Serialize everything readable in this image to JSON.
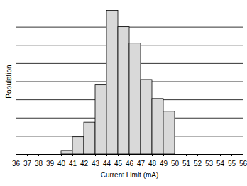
{
  "chart_data": {
    "type": "histogram",
    "bins": [
      40,
      41,
      42,
      43,
      44,
      45,
      46,
      47,
      48,
      49,
      50
    ],
    "values": [
      0.2,
      0.95,
      1.75,
      3.8,
      7.9,
      7.0,
      6.1,
      4.1,
      3.05,
      2.35
    ],
    "color": "#d9d9d9",
    "xlabel": "Current Limit (mA)",
    "ylabel": "Population",
    "xlim": [
      36,
      56
    ],
    "xticks": [
      36,
      37,
      38,
      39,
      40,
      41,
      42,
      43,
      44,
      45,
      46,
      47,
      48,
      49,
      50,
      51,
      52,
      53,
      54,
      55,
      56
    ],
    "ylim": [
      0,
      8
    ],
    "yticks": [
      0,
      1,
      2,
      3,
      4,
      5,
      6,
      7,
      8
    ],
    "grid": true,
    "tick_labels": "x"
  }
}
